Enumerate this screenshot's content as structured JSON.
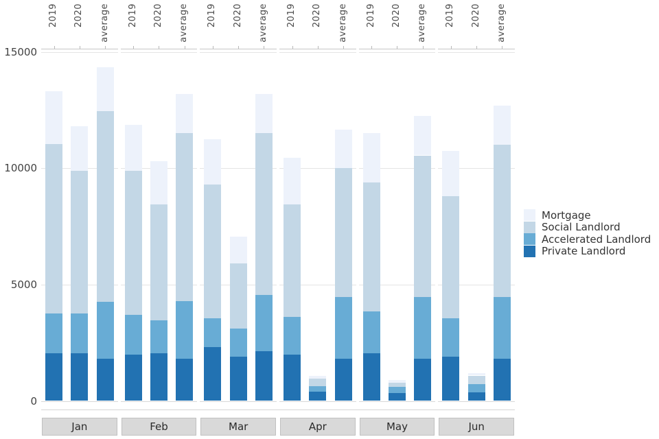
{
  "chart_data": {
    "type": "bar",
    "stacked": true,
    "facet_months": [
      "Jan",
      "Feb",
      "Mar",
      "Apr",
      "May",
      "Jun"
    ],
    "top_axis_labels": [
      "2019",
      "2020",
      "average"
    ],
    "y_axis": {
      "ticks": [
        0,
        5000,
        10000,
        15000
      ],
      "max": 15000,
      "gridlines_at": [
        5000,
        10000,
        15000
      ]
    },
    "legend": [
      {
        "label": "Mortgage",
        "color": "#edf2fb"
      },
      {
        "label": "Social Landlord",
        "color": "#c3d7e6"
      },
      {
        "label": "Accelerated Landlord",
        "color": "#68acd5"
      },
      {
        "label": "Private Landlord",
        "color": "#2272b2"
      }
    ],
    "stack_order_bottom_to_top": [
      "Private Landlord",
      "Accelerated Landlord",
      "Social Landlord",
      "Mortgage"
    ],
    "groups": [
      {
        "month": "Jan",
        "bars": [
          {
            "label": "2019",
            "values": {
              "Private Landlord": 2050,
              "Accelerated Landlord": 1700,
              "Social Landlord": 7300,
              "Mortgage": 2250
            }
          },
          {
            "label": "2020",
            "values": {
              "Private Landlord": 2050,
              "Accelerated Landlord": 1700,
              "Social Landlord": 6150,
              "Mortgage": 1900
            }
          },
          {
            "label": "average",
            "values": {
              "Private Landlord": 1800,
              "Accelerated Landlord": 2450,
              "Social Landlord": 8200,
              "Mortgage": 1900
            }
          }
        ]
      },
      {
        "month": "Feb",
        "bars": [
          {
            "label": "2019",
            "values": {
              "Private Landlord": 2000,
              "Accelerated Landlord": 1700,
              "Social Landlord": 6200,
              "Mortgage": 1950
            }
          },
          {
            "label": "2020",
            "values": {
              "Private Landlord": 2050,
              "Accelerated Landlord": 1400,
              "Social Landlord": 5000,
              "Mortgage": 1850
            }
          },
          {
            "label": "average",
            "values": {
              "Private Landlord": 1800,
              "Accelerated Landlord": 2500,
              "Social Landlord": 7200,
              "Mortgage": 1700
            }
          }
        ]
      },
      {
        "month": "Mar",
        "bars": [
          {
            "label": "2019",
            "values": {
              "Private Landlord": 2300,
              "Accelerated Landlord": 1250,
              "Social Landlord": 5750,
              "Mortgage": 1950
            }
          },
          {
            "label": "2020",
            "values": {
              "Private Landlord": 1900,
              "Accelerated Landlord": 1200,
              "Social Landlord": 2800,
              "Mortgage": 1150
            }
          },
          {
            "label": "average",
            "values": {
              "Private Landlord": 2150,
              "Accelerated Landlord": 2400,
              "Social Landlord": 6950,
              "Mortgage": 1700
            }
          }
        ]
      },
      {
        "month": "Apr",
        "bars": [
          {
            "label": "2019",
            "values": {
              "Private Landlord": 2000,
              "Accelerated Landlord": 1600,
              "Social Landlord": 4850,
              "Mortgage": 2000
            }
          },
          {
            "label": "2020",
            "values": {
              "Private Landlord": 410,
              "Accelerated Landlord": 210,
              "Social Landlord": 350,
              "Mortgage": 120
            }
          },
          {
            "label": "average",
            "values": {
              "Private Landlord": 1800,
              "Accelerated Landlord": 2650,
              "Social Landlord": 5550,
              "Mortgage": 1650
            }
          }
        ]
      },
      {
        "month": "May",
        "bars": [
          {
            "label": "2019",
            "values": {
              "Private Landlord": 2050,
              "Accelerated Landlord": 1800,
              "Social Landlord": 5550,
              "Mortgage": 2100
            }
          },
          {
            "label": "2020",
            "values": {
              "Private Landlord": 350,
              "Accelerated Landlord": 240,
              "Social Landlord": 200,
              "Mortgage": 120
            }
          },
          {
            "label": "average",
            "values": {
              "Private Landlord": 1800,
              "Accelerated Landlord": 2650,
              "Social Landlord": 6100,
              "Mortgage": 1700
            }
          }
        ]
      },
      {
        "month": "Jun",
        "bars": [
          {
            "label": "2019",
            "values": {
              "Private Landlord": 1900,
              "Accelerated Landlord": 1650,
              "Social Landlord": 5250,
              "Mortgage": 1950
            }
          },
          {
            "label": "2020",
            "values": {
              "Private Landlord": 360,
              "Accelerated Landlord": 370,
              "Social Landlord": 360,
              "Mortgage": 110
            }
          },
          {
            "label": "average",
            "values": {
              "Private Landlord": 1800,
              "Accelerated Landlord": 2650,
              "Social Landlord": 6550,
              "Mortgage": 1700
            }
          }
        ]
      }
    ]
  },
  "style_colors": {
    "gridline": "#e4e4e4",
    "top_spine": "#c6c6c6",
    "baseline": "#d8d8d8",
    "strip_background": "#d9d9d9",
    "strip_border": "#c0c0c0",
    "axis_text": "#424242"
  }
}
